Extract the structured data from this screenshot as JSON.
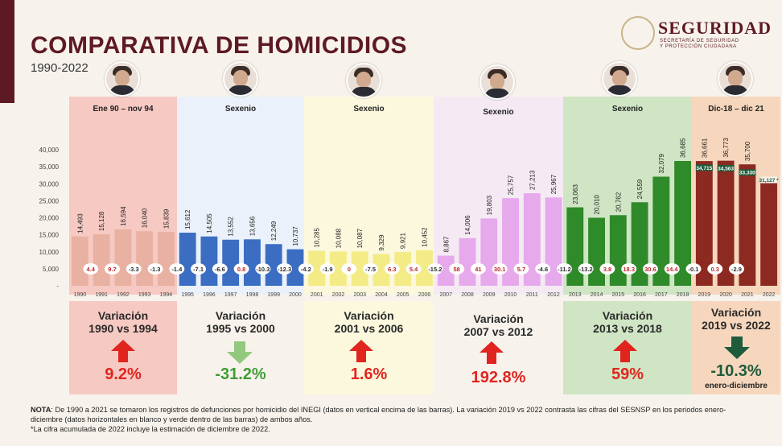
{
  "header": {
    "title": "COMPARATIVA DE HOMICIDIOS",
    "subtitle": "1990-2022",
    "logo_title": "SEGURIDAD",
    "logo_sub1": "SECRETARÍA DE SEGURIDAD",
    "logo_sub2": "Y PROTECCIÓN CIUDADANA"
  },
  "periods": [
    {
      "label": "Ene 90 – nov 94",
      "color": "#f6c9c3",
      "variation_title1": "Variación",
      "variation_title2": "1990 vs 1994",
      "variation_value": "9.2%",
      "direction": "up",
      "value_color": "#e0251f"
    },
    {
      "label": "Sexenio",
      "color": "#eaf1fa",
      "variation_title1": "Variación",
      "variation_title2": "1995 vs 2000",
      "variation_value": "-31.2%",
      "direction": "down",
      "value_color": "#3f9c35"
    },
    {
      "label": "Sexenio",
      "color": "#fbf8dd",
      "variation_title1": "Variación",
      "variation_title2": "2001 vs 2006",
      "variation_value": "1.6%",
      "direction": "up",
      "value_color": "#e0251f"
    },
    {
      "label": "Sexenio",
      "color": "#f5eaf3",
      "variation_title1": "Variación",
      "variation_title2": "2007 vs 2012",
      "variation_value": "192.8%",
      "direction": "up",
      "value_color": "#e0251f"
    },
    {
      "label": "Sexenio",
      "color": "#cfe5c4",
      "variation_title1": "Variación",
      "variation_title2": "2013 vs 2018",
      "variation_value": "59%",
      "direction": "up",
      "value_color": "#e0251f"
    },
    {
      "label": "Dic-18 – dic 21",
      "color": "#f6d7bd",
      "variation_title1": "Variación",
      "variation_title2": "2019 vs 2022",
      "variation_value": "-10.3%",
      "direction": "down",
      "value_color": "#1e5b3a",
      "variation_sub": "enero-diciembre"
    }
  ],
  "chart_data": {
    "type": "bar",
    "ylim": [
      0,
      40000
    ],
    "yticks": [
      "40,000",
      "35,000",
      "30,000",
      "25,000",
      "20,000",
      "15,000",
      "10,000",
      "5,000",
      "-"
    ],
    "categories": [
      "1990",
      "1991",
      "1992",
      "1993",
      "1994",
      "1995",
      "1996",
      "1997",
      "1998",
      "1999",
      "2000",
      "2001",
      "2002",
      "2003",
      "2004",
      "2005",
      "2006",
      "2007",
      "2008",
      "2009",
      "2010",
      "2011",
      "2012",
      "2013",
      "2014",
      "2015",
      "2016",
      "2017",
      "2018",
      "2019",
      "2020",
      "2021",
      "2022"
    ],
    "values": [
      14493,
      15128,
      16594,
      16040,
      15839,
      15612,
      14505,
      13552,
      13656,
      12249,
      10737,
      10285,
      10088,
      10087,
      9329,
      9921,
      10452,
      8867,
      14006,
      19803,
      25757,
      27213,
      25967,
      23063,
      20010,
      20762,
      24559,
      32079,
      36685,
      36661,
      36773,
      35700,
      null
    ],
    "value_labels": [
      "14,493",
      "15,128",
      "16,594",
      "16,040",
      "15,839",
      "15,612",
      "14,505",
      "13,552",
      "13,656",
      "12,249",
      "10,737",
      "10,285",
      "10,088",
      "10,087",
      "9,329",
      "9,921",
      "10,452",
      "8,867",
      "14,006",
      "19,803",
      "25,757",
      "27,213",
      "25,967",
      "23,063",
      "20,010",
      "20,762",
      "24,559",
      "32,079",
      "36,685",
      "36,661",
      "36,773",
      "35,700",
      ""
    ],
    "changes": [
      "",
      "4.4",
      "9.7",
      "-3.3",
      "-1.3",
      "-1.4",
      "-7.1",
      "-6.6",
      "0.8",
      "-10.3",
      "-12.3",
      "-4.2",
      "-1.9",
      "0",
      "-7.5",
      "6.3",
      "5.4",
      "-15.2",
      "58",
      "41",
      "30.1",
      "5.7",
      "-4.6",
      "-11.2",
      "-13.2",
      "3.8",
      "18.3",
      "30.6",
      "14.4",
      "-0.1",
      "0.3",
      "-2.9",
      ""
    ],
    "sesnsp": {
      "categories": [
        "2019",
        "2020",
        "2021",
        "2022"
      ],
      "values": [
        34715,
        34563,
        33330,
        31127
      ],
      "labels": [
        "34,715",
        "34,563",
        "33,330",
        "31,127 *"
      ]
    },
    "series_colors": [
      "#e9b1a2",
      "#3b6dc2",
      "#f3eb86",
      "#e6a9ec",
      "#2f8a29",
      "#8c2a22"
    ]
  },
  "note": {
    "bold": "NOTA",
    "line1": ": De 1990 a 2021 se tomaron los registros de defunciones por homicidio del INEGI (datos en vertical encima de las barras). La variación 2019 vs 2022 contrasta las cifras del SESNSP en los periodos enero-diciembre (datos horizontales en blanco y verde dentro de las barras) de ambos años.",
    "line2": "*La cifra acumulada de 2022 incluye la estimación de diciembre de 2022."
  }
}
